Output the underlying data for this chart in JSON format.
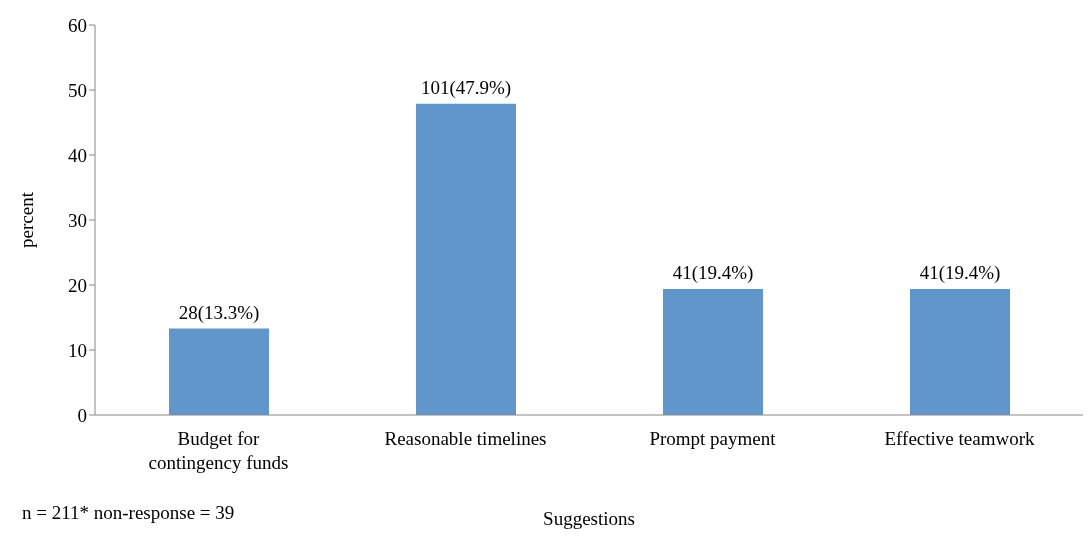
{
  "chart_data": {
    "type": "bar",
    "xlabel": "Suggestions",
    "ylabel": "percent",
    "categories": [
      "Budget for contingency funds",
      "Reasonable timelines",
      "Prompt payment",
      "Effective teamwork"
    ],
    "values": [
      13.3,
      47.9,
      19.4,
      19.4
    ],
    "value_labels": [
      "28(13.3%)",
      "101(47.9%)",
      "41(19.4%)",
      "41(19.4%)"
    ],
    "color": "#6096c9",
    "ylim": [
      0,
      60
    ],
    "yticks": [
      0,
      10,
      20,
      30,
      40,
      50,
      60
    ],
    "annotations": [
      "n = 211* non-response = 39"
    ]
  }
}
